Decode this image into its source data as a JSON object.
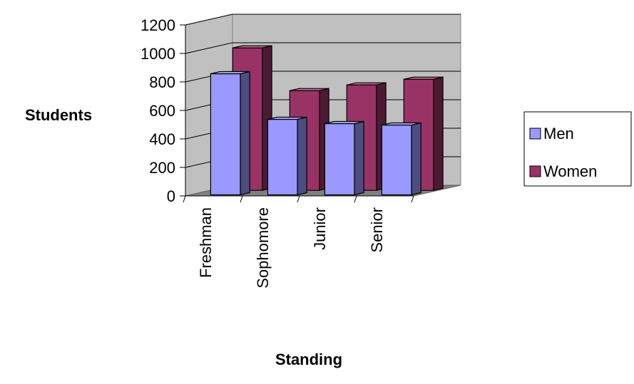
{
  "chart_data": {
    "type": "bar",
    "categories": [
      "Freshman",
      "Sophomore",
      "Junior",
      "Senior"
    ],
    "series": [
      {
        "name": "Men",
        "values": [
          850,
          530,
          500,
          490
        ],
        "color": "#9999ff"
      },
      {
        "name": "Women",
        "values": [
          1000,
          700,
          740,
          780
        ],
        "color": "#993366"
      }
    ],
    "xlabel": "Standing",
    "ylabel": "Students",
    "ylim": [
      0,
      1200
    ],
    "yticks": [
      "0",
      "200",
      "400",
      "600",
      "800",
      "1000",
      "1200"
    ],
    "grid": true,
    "legend_position": "right",
    "style": "3d-column"
  }
}
